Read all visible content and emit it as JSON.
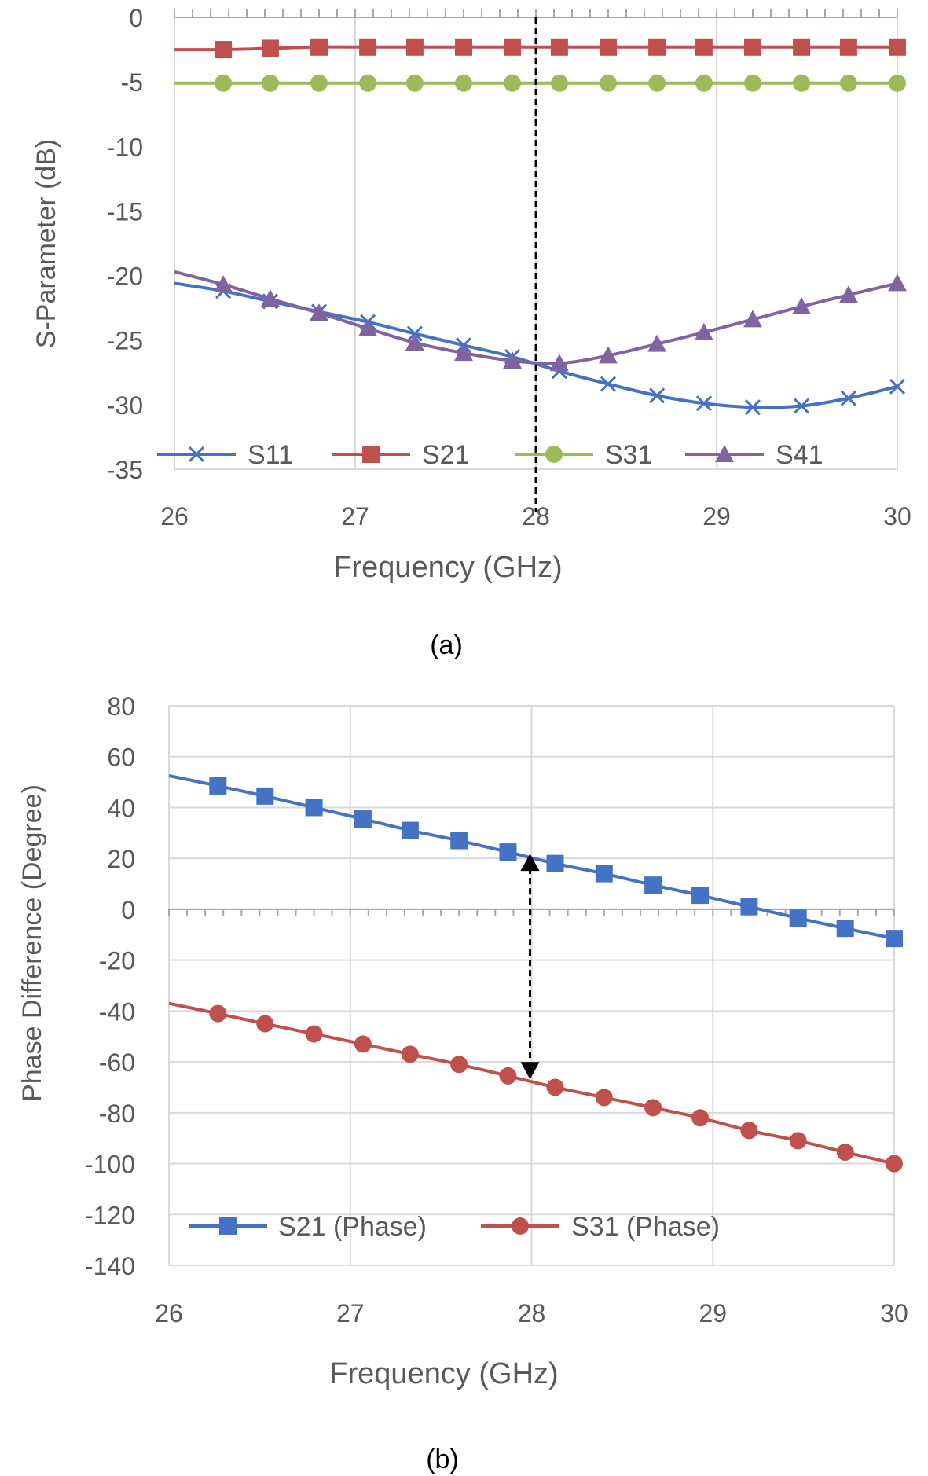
{
  "chart_data": [
    {
      "type": "line",
      "caption": "(a)",
      "xlabel": "Frequency (GHz)",
      "ylabel": "S-Parameter (dB)",
      "xlim": [
        26,
        30
      ],
      "ylim": [
        -35,
        0
      ],
      "x_ticks": [
        26,
        27,
        28,
        29,
        30
      ],
      "y_ticks": [
        0,
        -5,
        -10,
        -15,
        -20,
        -25,
        -30,
        -35
      ],
      "grid": "vertical",
      "legend_position": "bottom",
      "marker_line_x": 28,
      "series": [
        {
          "name": "S11",
          "color": "#4472c4",
          "marker": "x",
          "x": [
            26,
            26.27,
            26.53,
            26.8,
            27.07,
            27.33,
            27.6,
            27.87,
            28.13,
            28.4,
            28.67,
            28.93,
            29.2,
            29.47,
            29.73,
            30
          ],
          "values": [
            -20.6,
            -21.2,
            -22,
            -22.8,
            -23.6,
            -24.5,
            -25.4,
            -26.3,
            -27.4,
            -28.4,
            -29.3,
            -29.9,
            -30.2,
            -30.1,
            -29.5,
            -28.6
          ]
        },
        {
          "name": "S21",
          "color": "#c0504d",
          "marker": "square",
          "x": [
            26,
            26.27,
            26.53,
            26.8,
            27.07,
            27.33,
            27.6,
            27.87,
            28.13,
            28.4,
            28.67,
            28.93,
            29.2,
            29.47,
            29.73,
            30
          ],
          "values": [
            -2.5,
            -2.5,
            -2.4,
            -2.3,
            -2.3,
            -2.3,
            -2.3,
            -2.3,
            -2.3,
            -2.3,
            -2.3,
            -2.3,
            -2.3,
            -2.3,
            -2.3,
            -2.3
          ]
        },
        {
          "name": "S31",
          "color": "#9bbb59",
          "marker": "circle",
          "x": [
            26,
            26.27,
            26.53,
            26.8,
            27.07,
            27.33,
            27.6,
            27.87,
            28.13,
            28.4,
            28.67,
            28.93,
            29.2,
            29.47,
            29.73,
            30
          ],
          "values": [
            -5.1,
            -5.1,
            -5.1,
            -5.1,
            -5.1,
            -5.1,
            -5.1,
            -5.1,
            -5.1,
            -5.1,
            -5.1,
            -5.1,
            -5.1,
            -5.1,
            -5.1,
            -5.1
          ]
        },
        {
          "name": "S41",
          "color": "#8064a2",
          "marker": "triangle",
          "x": [
            26,
            26.27,
            26.53,
            26.8,
            27.07,
            27.33,
            27.6,
            27.87,
            28.13,
            28.4,
            28.67,
            28.93,
            29.2,
            29.47,
            29.73,
            30
          ],
          "values": [
            -19.7,
            -20.7,
            -21.8,
            -22.9,
            -24.1,
            -25.2,
            -26,
            -26.6,
            -26.8,
            -26.2,
            -25.3,
            -24.4,
            -23.4,
            -22.4,
            -21.5,
            -20.6
          ]
        }
      ]
    },
    {
      "type": "line",
      "caption": "(b)",
      "xlabel": "Frequency (GHz)",
      "ylabel": "Phase Difference (Degree)",
      "xlim": [
        26,
        30
      ],
      "ylim": [
        -140,
        80
      ],
      "x_ticks": [
        26,
        27,
        28,
        29,
        30
      ],
      "y_ticks": [
        80,
        60,
        40,
        20,
        0,
        -20,
        -40,
        -60,
        -80,
        -100,
        -120,
        -140
      ],
      "grid": "both",
      "legend_position": "bottom",
      "marker_line_x": 28,
      "arrow_range": [
        20,
        -65
      ],
      "series": [
        {
          "name": "S21 (Phase)",
          "color": "#4472c4",
          "marker": "square",
          "x": [
            26,
            26.27,
            26.53,
            26.8,
            27.07,
            27.33,
            27.6,
            27.87,
            28.13,
            28.4,
            28.67,
            28.93,
            29.2,
            29.47,
            29.73,
            30
          ],
          "values": [
            52.5,
            48.5,
            44.5,
            40,
            35.5,
            31,
            27,
            22.5,
            18,
            14,
            9.5,
            5.5,
            1,
            -3.5,
            -7.5,
            -11.5
          ]
        },
        {
          "name": "S31 (Phase)",
          "color": "#c0504d",
          "marker": "circle",
          "x": [
            26,
            26.27,
            26.53,
            26.8,
            27.07,
            27.33,
            27.6,
            27.87,
            28.13,
            28.4,
            28.67,
            28.93,
            29.2,
            29.47,
            29.73,
            30
          ],
          "values": [
            -37,
            -41,
            -45,
            -49,
            -53,
            -57,
            -61,
            -65.5,
            -70,
            -74,
            -78,
            -82,
            -87,
            -91,
            -95.5,
            -100
          ]
        }
      ]
    }
  ]
}
